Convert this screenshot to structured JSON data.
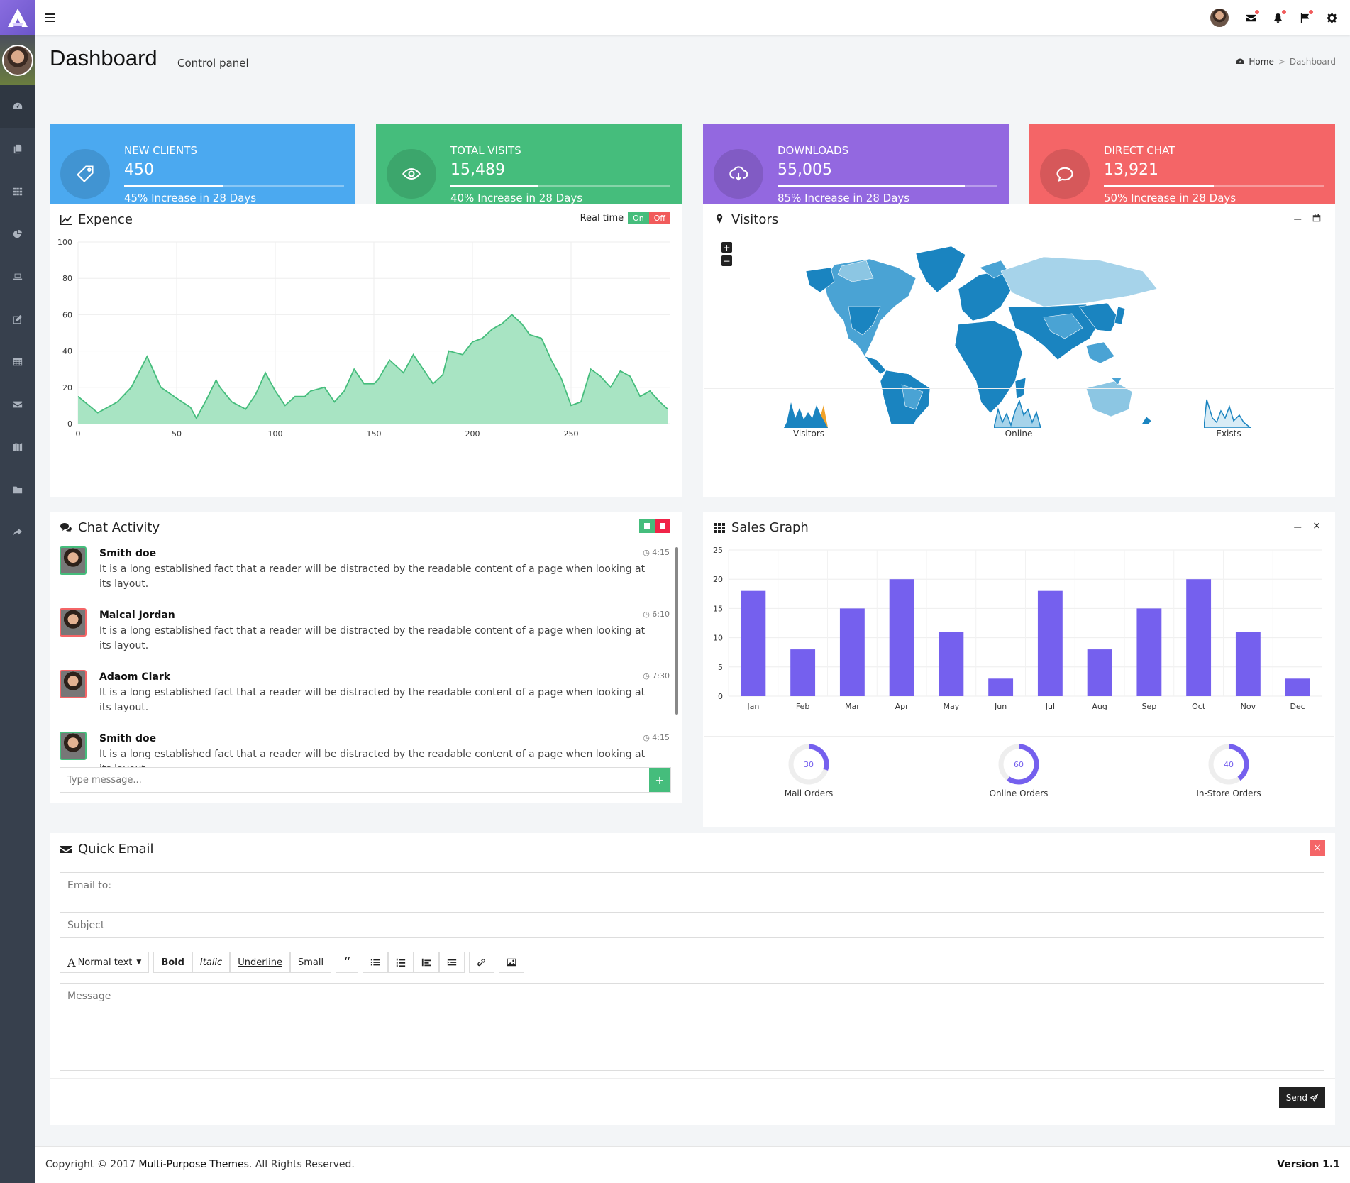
{
  "header": {
    "title": "Dashboard",
    "subtitle": "Control panel",
    "breadcrumb": [
      "Home",
      "Dashboard"
    ]
  },
  "sidebar": {
    "items": [
      "dashboard-icon",
      "copy-icon",
      "th-icon",
      "pie-chart-icon",
      "laptop-icon",
      "edit-icon",
      "table-icon",
      "envelope-icon",
      "map-icon",
      "folder-icon",
      "share-icon"
    ]
  },
  "stats": [
    {
      "title": "NEW CLIENTS",
      "value": "450",
      "desc": "45% Increase in 28 Days",
      "progress": 0.45,
      "color": "#4ba9f0",
      "icon": "tag-icon"
    },
    {
      "title": "TOTAL VISITS",
      "value": "15,489",
      "desc": "40% Increase in 28 Days",
      "progress": 0.4,
      "color": "#45bd7c",
      "icon": "eye-icon"
    },
    {
      "title": "DOWNLOADS",
      "value": "55,005",
      "desc": "85% Increase in 28 Days",
      "progress": 0.85,
      "color": "#9368e0",
      "icon": "cloud-download-icon"
    },
    {
      "title": "DIRECT CHAT",
      "value": "13,921",
      "desc": "50% Increase in 28 Days",
      "progress": 0.5,
      "color": "#f46567",
      "icon": "comment-icon"
    }
  ],
  "expence": {
    "title": "Expence",
    "realtime_label": "Real time",
    "on_label": "On",
    "off_label": "Off"
  },
  "visitors": {
    "title": "Visitors",
    "zoom_in": "+",
    "zoom_out": "−",
    "sparks": [
      "Visitors",
      "Online",
      "Exists"
    ]
  },
  "chat": {
    "title": "Chat Activity",
    "placeholder": "Type message...",
    "messages": [
      {
        "name": "Smith doe",
        "time": "4:15",
        "text": "It is a long established fact that a reader will be distracted by the readable content of a page when looking at its layout.",
        "border": "#45bd7c"
      },
      {
        "name": "Maical Jordan",
        "time": "6:10",
        "text": "It is a long established fact that a reader will be distracted by the readable content of a page when looking at its layout.",
        "border": "#f46567"
      },
      {
        "name": "Adaom Clark",
        "time": "7:30",
        "text": "It is a long established fact that a reader will be distracted by the readable content of a page when looking at its layout.",
        "border": "#f46567"
      },
      {
        "name": "Smith doe",
        "time": "4:15",
        "text": "It is a long established fact that a reader will be distracted by the readable content of a page when looking at its layout.",
        "border": "#45bd7c"
      }
    ]
  },
  "sales": {
    "title": "Sales Graph",
    "donuts": [
      {
        "value": 30,
        "label": "Mail Orders"
      },
      {
        "value": 60,
        "label": "Online Orders"
      },
      {
        "value": 40,
        "label": "In-Store Orders"
      }
    ]
  },
  "email": {
    "title": "Quick Email",
    "to_placeholder": "Email to:",
    "subject_placeholder": "Subject",
    "message_placeholder": "Message",
    "send_label": "Send",
    "toolbar": {
      "normal": "Normal text",
      "bold": "Bold",
      "italic": "Italic",
      "underline": "Underline",
      "small": "Small"
    }
  },
  "footer": {
    "copyright_pre": "Copyright © 2017 ",
    "company": "Multi-Purpose Themes",
    "copyright_post": ". All Rights Reserved.",
    "version": "Version 1.1"
  },
  "chart_data": [
    {
      "type": "area",
      "title": "Expence",
      "xlim": [
        0,
        300
      ],
      "ylim": [
        0,
        100
      ],
      "xticks": [
        0,
        50,
        100,
        150,
        200,
        250
      ],
      "yticks": [
        0,
        20,
        40,
        60,
        80,
        100
      ],
      "grid": true,
      "color": "#45bd7c",
      "x": [
        0,
        10,
        20,
        27,
        35,
        42,
        50,
        57,
        60,
        65,
        70,
        72,
        78,
        85,
        90,
        95,
        100,
        105,
        110,
        115,
        118,
        125,
        130,
        135,
        140,
        145,
        150,
        152,
        158,
        165,
        170,
        175,
        180,
        185,
        188,
        195,
        200,
        205,
        210,
        215,
        220,
        225,
        229,
        235,
        240,
        245,
        250,
        255,
        260,
        265,
        270,
        275,
        280,
        285,
        290,
        295,
        299
      ],
      "y": [
        15,
        6,
        12,
        20,
        37,
        20,
        14,
        9,
        3,
        13,
        24,
        20,
        12,
        8,
        16,
        28,
        18,
        10,
        15,
        15,
        18,
        20,
        12,
        18,
        30,
        22,
        22,
        24,
        35,
        28,
        38,
        30,
        22,
        27,
        40,
        38,
        45,
        47,
        52,
        55,
        60,
        55,
        49,
        47,
        35,
        25,
        10,
        12,
        30,
        26,
        20,
        29,
        26,
        15,
        18,
        12,
        8
      ]
    },
    {
      "type": "bar",
      "title": "Sales Graph",
      "categories": [
        "Jan",
        "Feb",
        "Mar",
        "Apr",
        "May",
        "Jun",
        "Jul",
        "Aug",
        "Sep",
        "Oct",
        "Nov",
        "Dec"
      ],
      "values": [
        18,
        8,
        15,
        20,
        11,
        3,
        18,
        8,
        15,
        20,
        11,
        3
      ],
      "ylim": [
        0,
        25
      ],
      "yticks": [
        0,
        5,
        10,
        15,
        20,
        25
      ],
      "grid": true,
      "color": "#7560ee"
    }
  ]
}
